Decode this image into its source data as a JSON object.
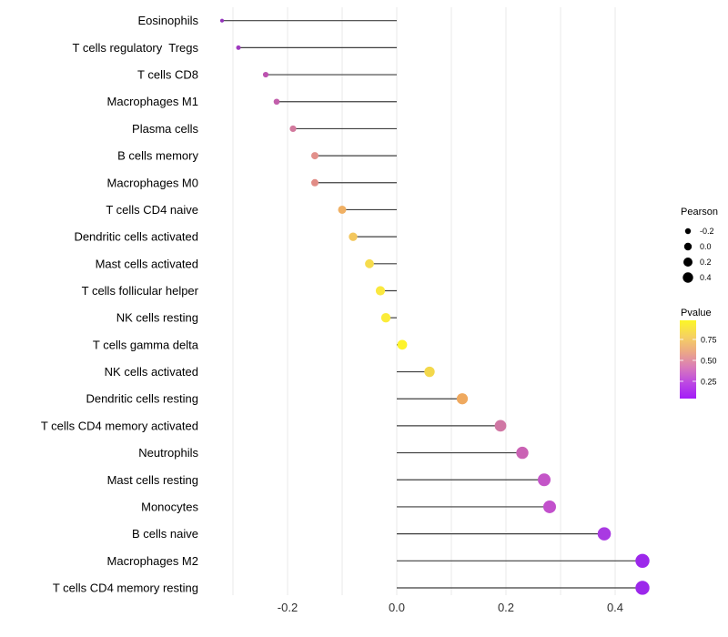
{
  "colors": {
    "background": "#FFFFFF",
    "stem": "#3F3F3F",
    "grid": "#EDEDED",
    "axis_text": "#303030",
    "label_text": "#000000",
    "legend_dot": "#000000"
  },
  "chart_data": {
    "type": "lollipop",
    "title": "",
    "xlabel": "",
    "ylabel": "",
    "xlim": [
      -0.34,
      0.5
    ],
    "grid": "vertical gridlines every 0.1, no axis lines, white background",
    "x_ticks": [
      {
        "label": "-0.2",
        "value": -0.2
      },
      {
        "label": "0.0",
        "value": 0.0
      },
      {
        "label": "0.2",
        "value": 0.2
      },
      {
        "label": "0.4",
        "value": 0.4
      }
    ],
    "gridline_values": [
      -0.3,
      -0.2,
      -0.1,
      0.0,
      0.1,
      0.2,
      0.3,
      0.4
    ],
    "rows": [
      {
        "label": "Eosinophils",
        "pearson": -0.32,
        "color": "#9232BA",
        "size": 2.1
      },
      {
        "label": "T cells regulatory  Tregs",
        "pearson": -0.29,
        "color": "#9F3ABF",
        "size": 2.5
      },
      {
        "label": "T cells CD8",
        "pearson": -0.24,
        "color": "#BC52B0",
        "size": 3.1
      },
      {
        "label": "Macrophages M1",
        "pearson": -0.22,
        "color": "#C25EAB",
        "size": 3.3
      },
      {
        "label": "Plasma cells",
        "pearson": -0.19,
        "color": "#D2799D",
        "size": 3.6
      },
      {
        "label": "B cells memory",
        "pearson": -0.15,
        "color": "#E2908B",
        "size": 4.0
      },
      {
        "label": "Macrophages M0",
        "pearson": -0.15,
        "color": "#E18C86",
        "size": 4.0
      },
      {
        "label": "T cells CD4 naive",
        "pearson": -0.1,
        "color": "#F0B064",
        "size": 4.5
      },
      {
        "label": "Dendritic cells activated",
        "pearson": -0.08,
        "color": "#F3C75E",
        "size": 4.7
      },
      {
        "label": "Mast cells activated",
        "pearson": -0.05,
        "color": "#F6DC4D",
        "size": 4.9
      },
      {
        "label": "T cells follicular helper",
        "pearson": -0.03,
        "color": "#FAE83F",
        "size": 5.1
      },
      {
        "label": "NK cells resting",
        "pearson": -0.02,
        "color": "#FBEC3A",
        "size": 5.2
      },
      {
        "label": "T cells gamma delta",
        "pearson": 0.01,
        "color": "#FDF32B",
        "size": 5.4
      },
      {
        "label": "NK cells activated",
        "pearson": 0.06,
        "color": "#F3D84B",
        "size": 5.7
      },
      {
        "label": "Dendritic cells resting",
        "pearson": 0.12,
        "color": "#EFA95F",
        "size": 6.1
      },
      {
        "label": "T cells CD4 memory activated",
        "pearson": 0.19,
        "color": "#D077A4",
        "size": 6.4
      },
      {
        "label": "Neutrophils",
        "pearson": 0.23,
        "color": "#CA62B4",
        "size": 6.7
      },
      {
        "label": "Mast cells resting",
        "pearson": 0.27,
        "color": "#C455C8",
        "size": 7.0
      },
      {
        "label": "Monocytes",
        "pearson": 0.28,
        "color": "#C250CC",
        "size": 7.0
      },
      {
        "label": "B cells naive",
        "pearson": 0.38,
        "color": "#A93AE2",
        "size": 7.3
      },
      {
        "label": "Macrophages M2",
        "pearson": 0.45,
        "color": "#9C28EB",
        "size": 7.7
      },
      {
        "label": "T cells CD4 memory resting",
        "pearson": 0.45,
        "color": "#9C28EB",
        "size": 7.7
      }
    ],
    "legend_size": {
      "title": "Pearson",
      "entries": [
        {
          "label": "-0.2",
          "r": 3.2
        },
        {
          "label": "0.0",
          "r": 4.2
        },
        {
          "label": "0.2",
          "r": 5.0
        },
        {
          "label": "0.4",
          "r": 5.7
        }
      ]
    },
    "legend_color": {
      "title": "Pvalue",
      "tick_labels": [
        "0.75",
        "0.50",
        "0.25"
      ],
      "gradient_top_to_bottom": [
        "#FCF626",
        "#F6D35F",
        "#ECA985",
        "#D97BBA",
        "#BC48E3",
        "#A31CF8"
      ]
    }
  }
}
